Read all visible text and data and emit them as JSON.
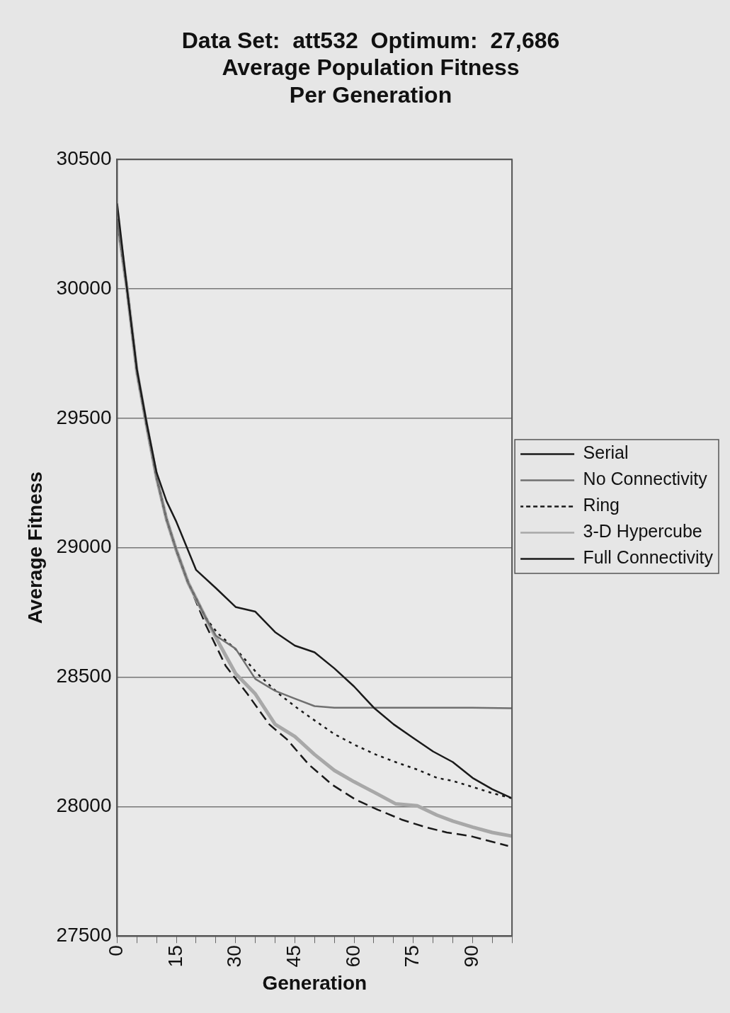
{
  "chart_data": {
    "type": "line",
    "title": "Data Set:  att532  Optimum:  27,686\nAverage Population Fitness\nPer Generation",
    "xlabel": "Generation",
    "ylabel": "Average Fitness",
    "xlim": [
      0,
      100
    ],
    "xticks": [
      {
        "value": 0,
        "label": "0"
      },
      {
        "value": 5,
        "label": null
      },
      {
        "value": 10,
        "label": null
      },
      {
        "value": 15,
        "label": "15"
      },
      {
        "value": 20,
        "label": null
      },
      {
        "value": 25,
        "label": null
      },
      {
        "value": 30,
        "label": "30"
      },
      {
        "value": 35,
        "label": null
      },
      {
        "value": 40,
        "label": null
      },
      {
        "value": 45,
        "label": "45"
      },
      {
        "value": 50,
        "label": null
      },
      {
        "value": 55,
        "label": null
      },
      {
        "value": 60,
        "label": "60"
      },
      {
        "value": 65,
        "label": null
      },
      {
        "value": 70,
        "label": null
      },
      {
        "value": 75,
        "label": "75"
      },
      {
        "value": 80,
        "label": null
      },
      {
        "value": 85,
        "label": null
      },
      {
        "value": 90,
        "label": "90"
      },
      {
        "value": 95,
        "label": null
      },
      {
        "value": 100,
        "label": null
      }
    ],
    "ylim": [
      27500,
      30500
    ],
    "yticks": [
      27500,
      28000,
      28500,
      29000,
      29500,
      30000,
      30500
    ],
    "grid": "y",
    "legend": "right",
    "marker": "none",
    "series": [
      {
        "name": "Serial",
        "color": "#1a1a1a",
        "line_style": "solid",
        "x": [
          0,
          2.5,
          5,
          7.5,
          10,
          12.5,
          15,
          20,
          25,
          30,
          35,
          40,
          45,
          50,
          55,
          60,
          65,
          70,
          75,
          80,
          85,
          90,
          95,
          100
        ],
        "values": [
          30330,
          30000,
          29690,
          29480,
          29290,
          29180,
          29100,
          28914,
          28844,
          28771,
          28753,
          28674,
          28622,
          28596,
          28534,
          28464,
          28382,
          28318,
          28265,
          28213,
          28172,
          28111,
          28067,
          28032
        ]
      },
      {
        "name": "No Connectivity",
        "color": "#707070",
        "line_style": "solid",
        "x": [
          0,
          2.5,
          5,
          7.5,
          10,
          12.5,
          15,
          18,
          22.5,
          25,
          30,
          35,
          40,
          45,
          50,
          55,
          60,
          70,
          80,
          90,
          100
        ],
        "values": [
          30270,
          30000,
          29680,
          29470,
          29270,
          29110,
          28990,
          28864,
          28727,
          28660,
          28610,
          28493,
          28447,
          28417,
          28388,
          28382,
          28382,
          28382,
          28382,
          28382,
          28380
        ]
      },
      {
        "name": "Ring",
        "color": "#1a1a1a",
        "line_style": "dotted",
        "x": [
          0,
          2.5,
          5,
          7.5,
          10,
          12.5,
          15,
          18,
          22.5,
          25.5,
          30.5,
          35.5,
          41,
          46,
          50,
          55,
          60.5,
          65.5,
          70.5,
          76,
          81,
          85,
          90,
          95,
          100
        ],
        "values": [
          30270,
          30000,
          29680,
          29470,
          29270,
          29110,
          28990,
          28864,
          28727,
          28669,
          28601,
          28514,
          28435,
          28376,
          28333,
          28280,
          28236,
          28201,
          28172,
          28143,
          28111,
          28099,
          28076,
          28052,
          28032
        ]
      },
      {
        "name": "3-D Hypercube",
        "color": "#a8a8a8",
        "line_style": "solid",
        "x": [
          0,
          2.5,
          5,
          7.5,
          10,
          12.5,
          15,
          18,
          22.5,
          25.5,
          30,
          35,
          40,
          45,
          50,
          55,
          60,
          65.5,
          70.5,
          76,
          81,
          85,
          90,
          95,
          100
        ],
        "values": [
          30270,
          30000,
          29680,
          29470,
          29270,
          29110,
          28990,
          28864,
          28727,
          28639,
          28514,
          28435,
          28318,
          28271,
          28201,
          28140,
          28096,
          28052,
          28011,
          28003,
          27967,
          27944,
          27921,
          27900,
          27886
        ]
      },
      {
        "name": "Full Connectivity",
        "color": "#1a1a1a",
        "line_style": "dashed",
        "x": [
          0,
          2.5,
          5,
          7.5,
          10,
          12.5,
          15,
          18,
          22.5,
          27.5,
          33,
          38.5,
          43,
          48.5,
          54.5,
          60.5,
          66,
          72,
          78,
          83.5,
          89.5,
          99
        ],
        "values": [
          30270,
          30000,
          29680,
          29470,
          29270,
          29110,
          28990,
          28864,
          28700,
          28543,
          28435,
          28318,
          28260,
          28163,
          28084,
          28026,
          27988,
          27950,
          27921,
          27900,
          27886,
          27848
        ]
      }
    ]
  }
}
